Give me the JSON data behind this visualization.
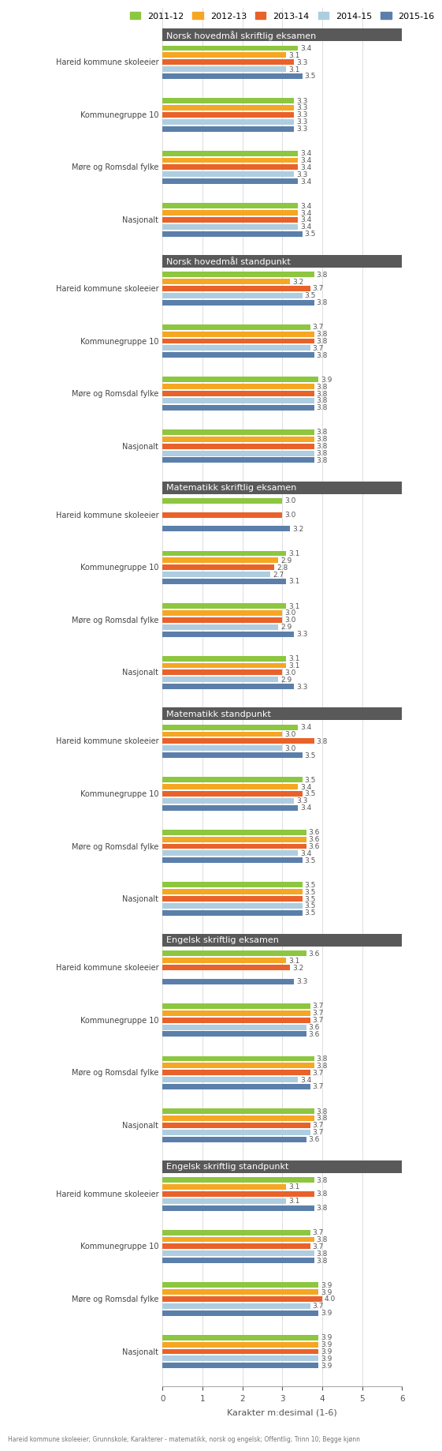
{
  "legend_labels": [
    "2011-12",
    "2012-13",
    "2013-14",
    "2014-15",
    "2015-16"
  ],
  "colors": [
    "#8dc63f",
    "#f5a623",
    "#e8622a",
    "#aecde0",
    "#5b7faa"
  ],
  "sections": [
    {
      "title": "Norsk hovedmål skriftlig eksamen",
      "groups": [
        {
          "label": "Hareid kommune skoleeier",
          "values": [
            3.4,
            3.1,
            3.3,
            3.1,
            3.5
          ]
        },
        {
          "label": "Kommunegruppe 10",
          "values": [
            3.3,
            3.3,
            3.3,
            3.3,
            3.3
          ]
        },
        {
          "label": "Møre og Romsdal fylke",
          "values": [
            3.4,
            3.4,
            3.4,
            3.3,
            3.4
          ]
        },
        {
          "label": "Nasjonalt",
          "values": [
            3.4,
            3.4,
            3.4,
            3.4,
            3.5
          ]
        }
      ]
    },
    {
      "title": "Norsk hovedmål standpunkt",
      "groups": [
        {
          "label": "Hareid kommune skoleeier",
          "values": [
            3.8,
            3.2,
            3.7,
            3.5,
            3.8
          ]
        },
        {
          "label": "Kommunegruppe 10",
          "values": [
            3.7,
            3.8,
            3.8,
            3.7,
            3.8
          ]
        },
        {
          "label": "Møre og Romsdal fylke",
          "values": [
            3.9,
            3.8,
            3.8,
            3.8,
            3.8
          ]
        },
        {
          "label": "Nasjonalt",
          "values": [
            3.8,
            3.8,
            3.8,
            3.8,
            3.8
          ]
        }
      ]
    },
    {
      "title": "Matematikk skriftlig eksamen",
      "groups": [
        {
          "label": "Hareid kommune skoleeier",
          "values": [
            3.0,
            null,
            3.0,
            null,
            3.2
          ]
        },
        {
          "label": "Kommunegruppe 10",
          "values": [
            3.1,
            2.9,
            2.8,
            2.7,
            3.1
          ]
        },
        {
          "label": "Møre og Romsdal fylke",
          "values": [
            3.1,
            3.0,
            3.0,
            2.9,
            3.3
          ]
        },
        {
          "label": "Nasjonalt",
          "values": [
            3.1,
            3.1,
            3.0,
            2.9,
            3.3
          ]
        }
      ]
    },
    {
      "title": "Matematikk standpunkt",
      "groups": [
        {
          "label": "Hareid kommune skoleeier",
          "values": [
            3.4,
            3.0,
            3.8,
            3.0,
            3.5
          ]
        },
        {
          "label": "Kommunegruppe 10",
          "values": [
            3.5,
            3.4,
            3.5,
            3.3,
            3.4
          ]
        },
        {
          "label": "Møre og Romsdal fylke",
          "values": [
            3.6,
            3.6,
            3.6,
            3.4,
            3.5
          ]
        },
        {
          "label": "Nasjonalt",
          "values": [
            3.5,
            3.5,
            3.5,
            3.5,
            3.5
          ]
        }
      ]
    },
    {
      "title": "Engelsk skriftlig eksamen",
      "groups": [
        {
          "label": "Hareid kommune skoleeier",
          "values": [
            3.6,
            3.1,
            3.2,
            null,
            3.3
          ]
        },
        {
          "label": "Kommunegruppe 10",
          "values": [
            3.7,
            3.7,
            3.7,
            3.6,
            3.6
          ]
        },
        {
          "label": "Møre og Romsdal fylke",
          "values": [
            3.8,
            3.8,
            3.7,
            3.4,
            3.7
          ]
        },
        {
          "label": "Nasjonalt",
          "values": [
            3.8,
            3.8,
            3.7,
            3.7,
            3.6
          ]
        }
      ]
    },
    {
      "title": "Engelsk skriftlig standpunkt",
      "groups": [
        {
          "label": "Hareid kommune skoleeier",
          "values": [
            3.8,
            3.1,
            3.8,
            3.1,
            3.8
          ]
        },
        {
          "label": "Kommunegruppe 10",
          "values": [
            3.7,
            3.8,
            3.7,
            3.8,
            3.8
          ]
        },
        {
          "label": "Møre og Romsdal fylke",
          "values": [
            3.9,
            3.9,
            4.0,
            3.7,
            3.9
          ]
        },
        {
          "label": "Nasjonalt",
          "values": [
            3.9,
            3.9,
            3.9,
            3.9,
            3.9
          ]
        }
      ]
    }
  ],
  "xlabel": "Karakter m:desimal (1-6)",
  "footnote": "Hareid kommune skoleeier; Grunnskole; Karakterer - matematikk, norsk og engelsk; Offentlig; Trinn 10; Begge kjønn",
  "xlim": [
    0,
    6
  ],
  "xticks": [
    0,
    1,
    2,
    3,
    4,
    5,
    6
  ],
  "section_title_bg": "#595959",
  "section_title_color": "#ffffff",
  "bg_color": "#ffffff",
  "grid_color": "#d8d8d8",
  "label_color": "#444444",
  "value_color": "#555555"
}
